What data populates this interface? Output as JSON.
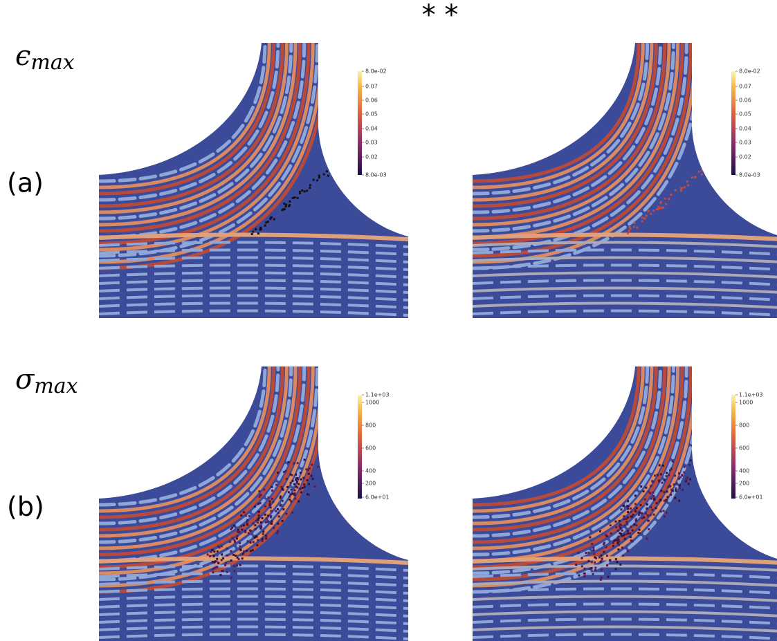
{
  "title": "* *",
  "rows": [
    {
      "symbol": "ϵ",
      "subscript": "max",
      "label": "(a)",
      "panels": [
        {
          "colorbar": [
            "8.0e-02",
            "0.07",
            "0.06",
            "0.05",
            "0.04",
            "0.03",
            "0.02",
            "8.0e-03"
          ]
        },
        {
          "colorbar": [
            "8.0e-02",
            "0.07",
            "0.06",
            "0.05",
            "0.04",
            "0.03",
            "0.02",
            "8.0e-03"
          ]
        }
      ]
    },
    {
      "symbol": "σ",
      "subscript": "max",
      "label": "(b)",
      "panels": [
        {
          "colorbar": [
            "1.1e+03",
            "1000",
            "800",
            "600",
            "400",
            "200",
            "6.0e+01"
          ]
        },
        {
          "colorbar": [
            "1.1e+03",
            "1000",
            "800",
            "600",
            "400",
            "200",
            "6.0e+01"
          ]
        }
      ]
    }
  ]
}
